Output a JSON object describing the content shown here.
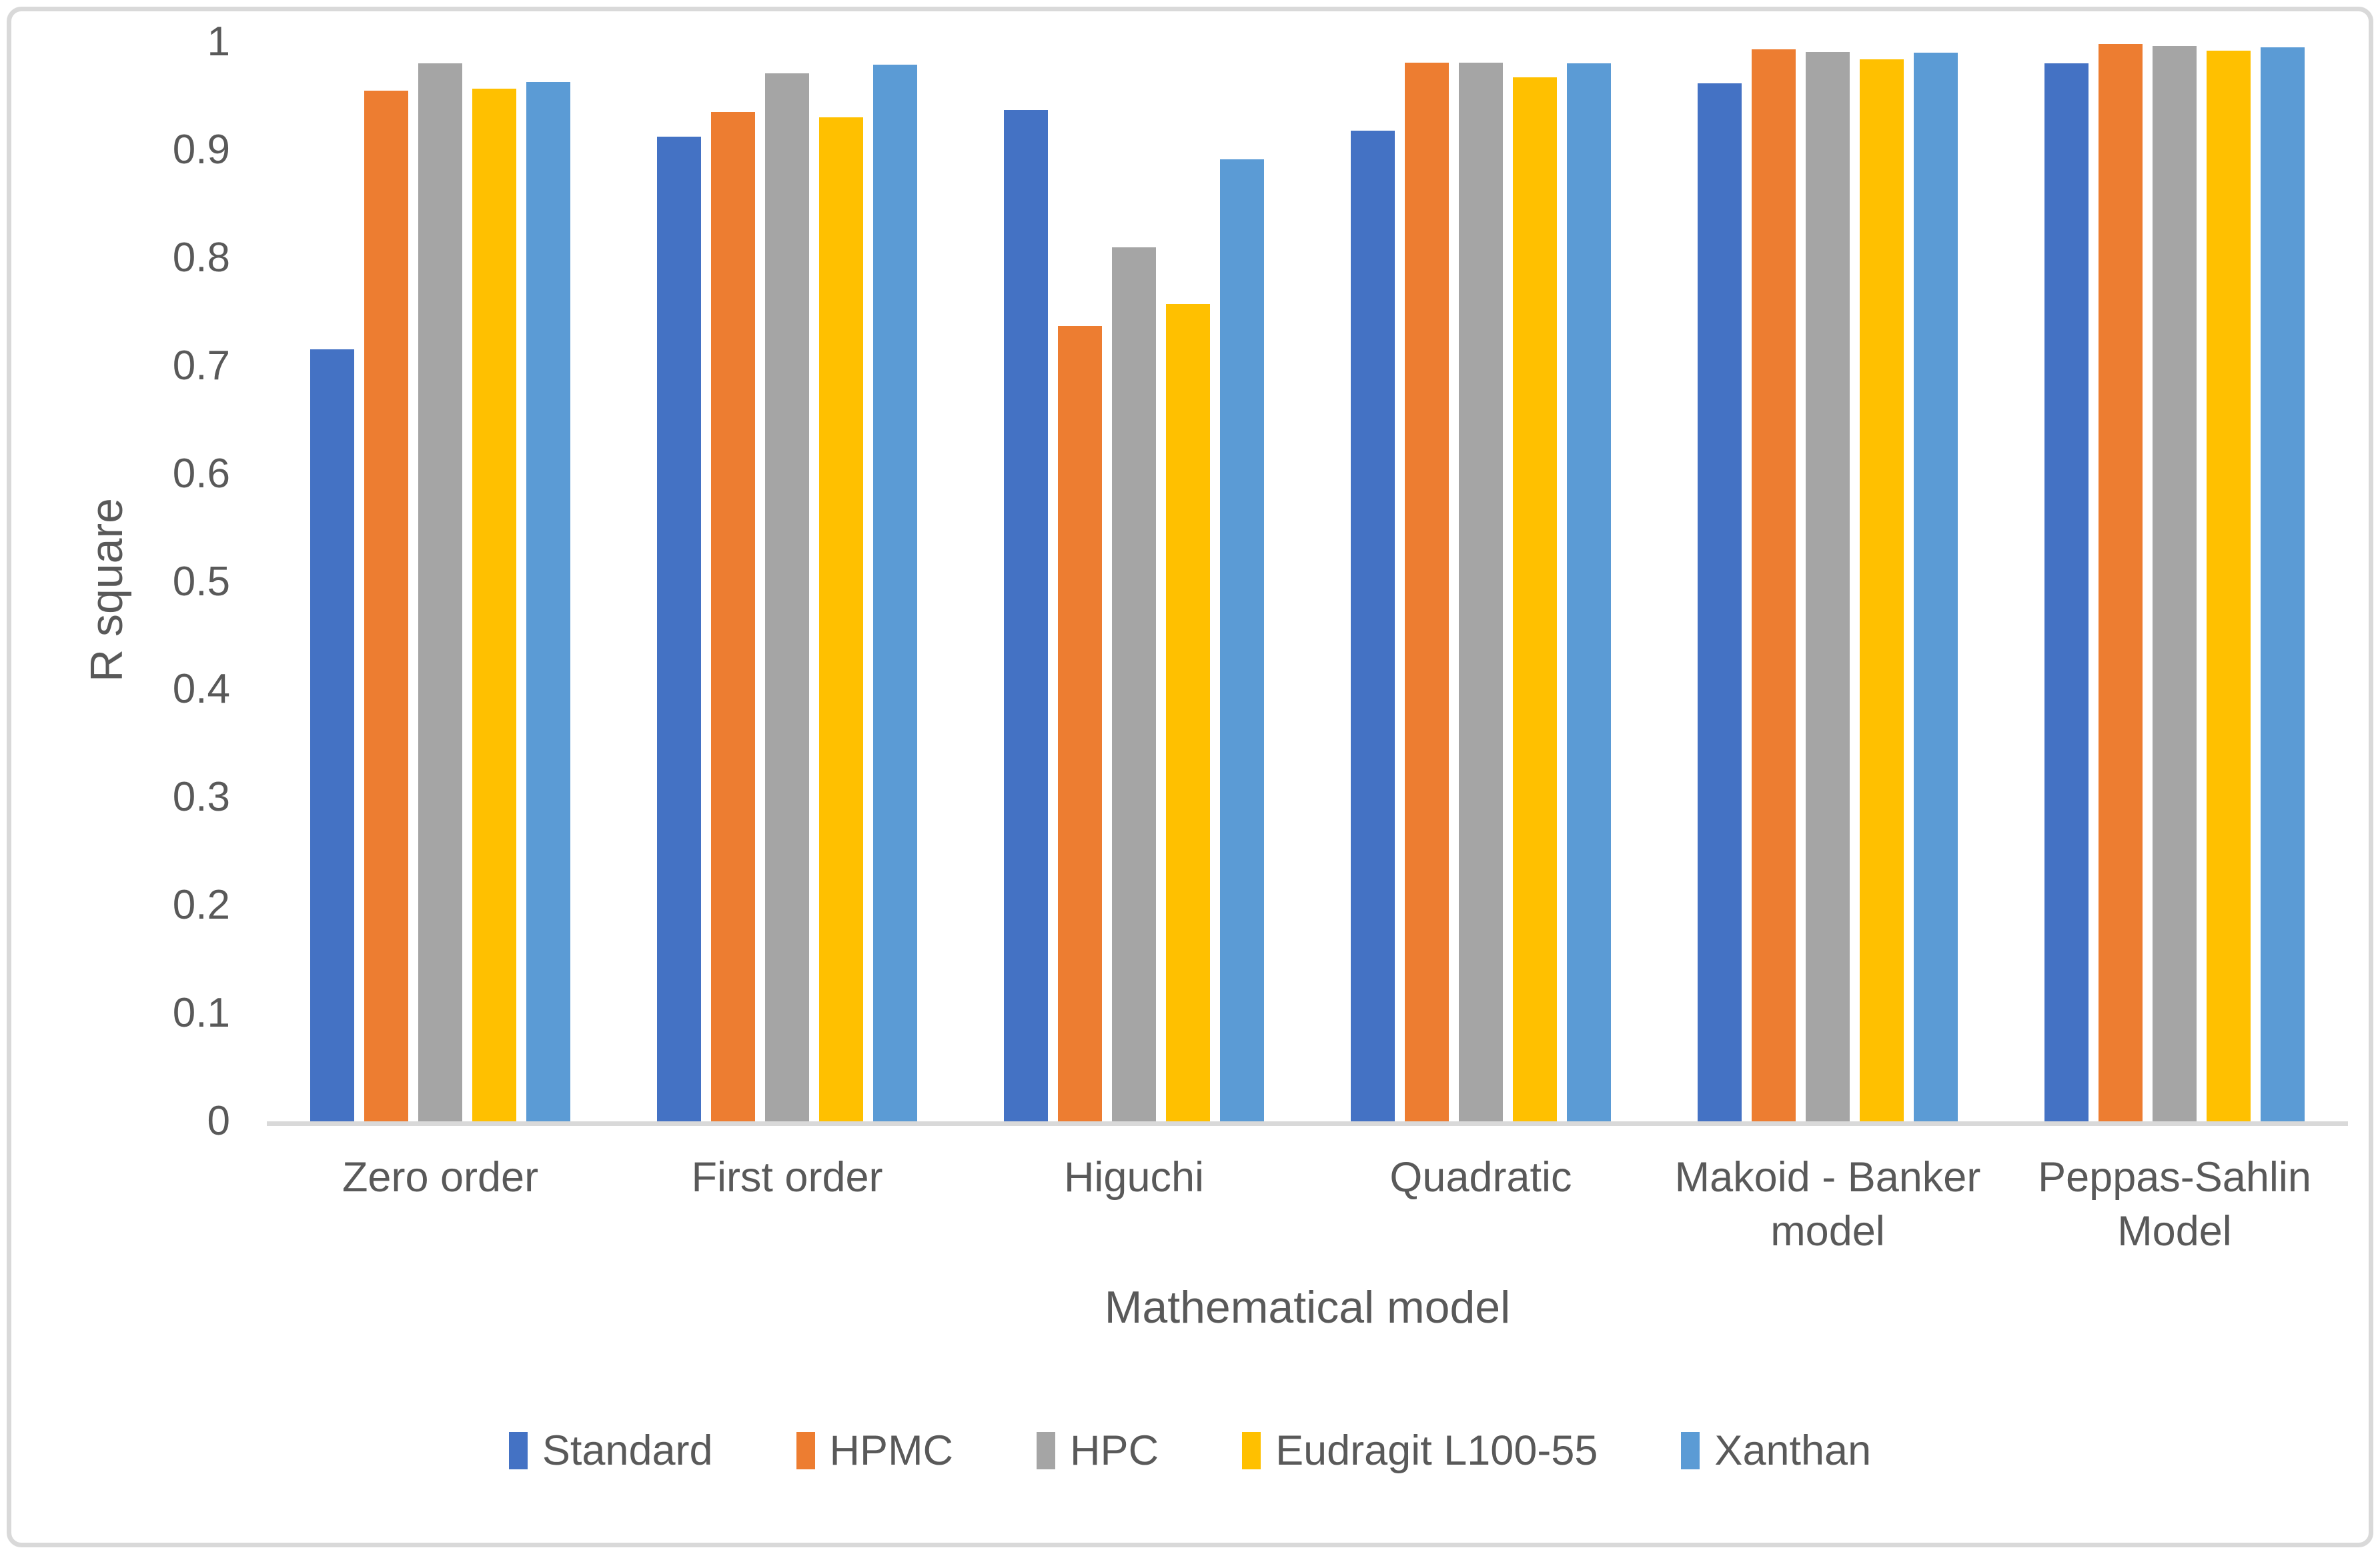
{
  "figure": {
    "kind": "excel-style clustered column chart",
    "background": "#ffffff",
    "border_color": "#d9d9d9"
  },
  "colors": {
    "text": "#595959",
    "axis_line": "#d9d9d9",
    "series_blue": "#4472C4",
    "series_orange": "#ED7D31",
    "series_gray": "#A5A5A5",
    "series_yellow": "#FFC000",
    "series_lightblue": "#5B9BD5"
  },
  "chart_data": {
    "type": "bar",
    "title": "",
    "xlabel": "Mathematical model",
    "ylabel": "R square",
    "ylim": [
      0,
      1
    ],
    "grid": false,
    "legend_position": "bottom",
    "yticks": [
      "0",
      "0.1",
      "0.2",
      "0.3",
      "0.4",
      "0.5",
      "0.6",
      "0.7",
      "0.8",
      "0.9",
      "1"
    ],
    "categories": [
      "Zero order",
      "First order",
      "Higuchi",
      "Quadratic",
      "Makoid - Banker model",
      "Peppas-Sahlin Model"
    ],
    "series": [
      {
        "name": "Standard",
        "color": "#4472C4",
        "values": [
          0.715,
          0.912,
          0.937,
          0.918,
          0.962,
          0.98
        ]
      },
      {
        "name": "HPMC",
        "color": "#ED7D31",
        "values": [
          0.955,
          0.935,
          0.737,
          0.981,
          0.993,
          0.998
        ]
      },
      {
        "name": "HPC",
        "color": "#A5A5A5",
        "values": [
          0.98,
          0.971,
          0.81,
          0.981,
          0.991,
          0.996
        ]
      },
      {
        "name": "Eudragit L100-55",
        "color": "#FFC000",
        "values": [
          0.957,
          0.93,
          0.757,
          0.967,
          0.984,
          0.992
        ]
      },
      {
        "name": "Xanthan",
        "color": "#5B9BD5",
        "values": [
          0.963,
          0.979,
          0.891,
          0.98,
          0.99,
          0.995
        ]
      }
    ]
  }
}
